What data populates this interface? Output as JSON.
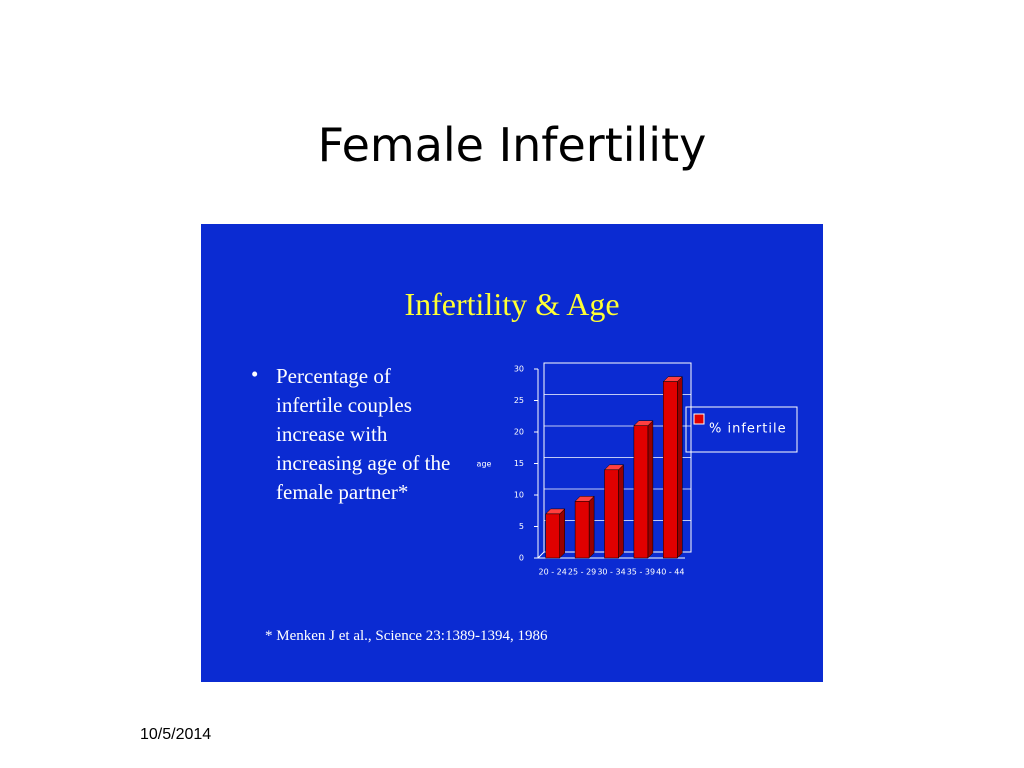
{
  "slide": {
    "title": "Female Infertility",
    "date": "10/5/2014"
  },
  "chart_data": {
    "type": "bar",
    "title": "Infertility & Age",
    "bullet": "Percentage of infertile couples increase with increasing age of the female partner*",
    "footnote": "* Menken J et al., Science 23:1389-1394, 1986",
    "y_label": "age",
    "categories": [
      "20 - 24",
      "25 - 29",
      "30 - 34",
      "35 - 39",
      "40 - 44"
    ],
    "series": [
      {
        "name": "% infertile",
        "color": "#e00000",
        "values": [
          7,
          9,
          14,
          21,
          28
        ]
      }
    ],
    "ylim": [
      0,
      30
    ],
    "yticks": [
      0,
      5,
      10,
      15,
      20,
      25,
      30
    ],
    "grid": true,
    "legend": "right"
  }
}
